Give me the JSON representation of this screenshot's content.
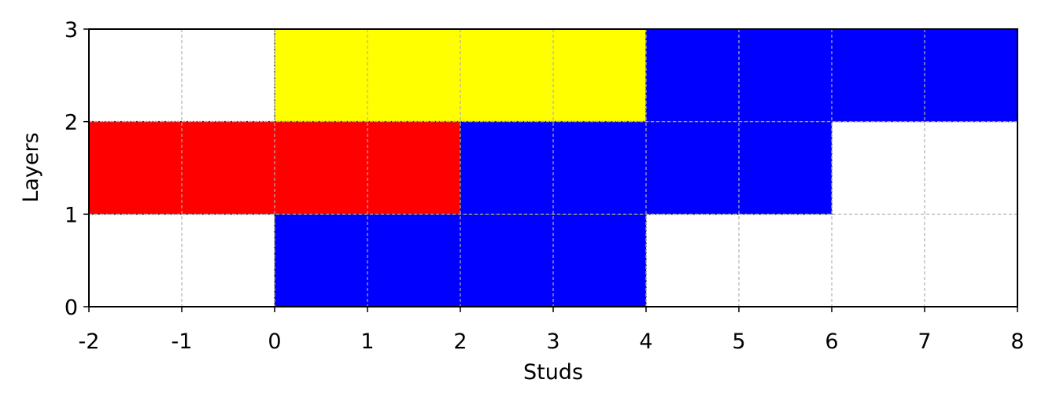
{
  "chart_data": {
    "type": "bricks",
    "x_label": "Studs",
    "y_label": "Layers",
    "xlim": [
      -2,
      8
    ],
    "ylim": [
      0,
      3
    ],
    "xticks": [
      -2,
      -1,
      0,
      1,
      2,
      3,
      4,
      5,
      6,
      7,
      8
    ],
    "yticks": [
      0,
      1,
      2,
      3
    ],
    "grid": true,
    "bricks": [
      {
        "start": 0,
        "end": 4,
        "layer": 0,
        "color": "#0000ff"
      },
      {
        "start": -2,
        "end": 2,
        "layer": 1,
        "color": "#ff0000"
      },
      {
        "start": 2,
        "end": 6,
        "layer": 1,
        "color": "#0000ff"
      },
      {
        "start": 0,
        "end": 4,
        "layer": 2,
        "color": "#ffff00"
      },
      {
        "start": 4,
        "end": 8,
        "layer": 2,
        "color": "#0000ff"
      }
    ]
  }
}
